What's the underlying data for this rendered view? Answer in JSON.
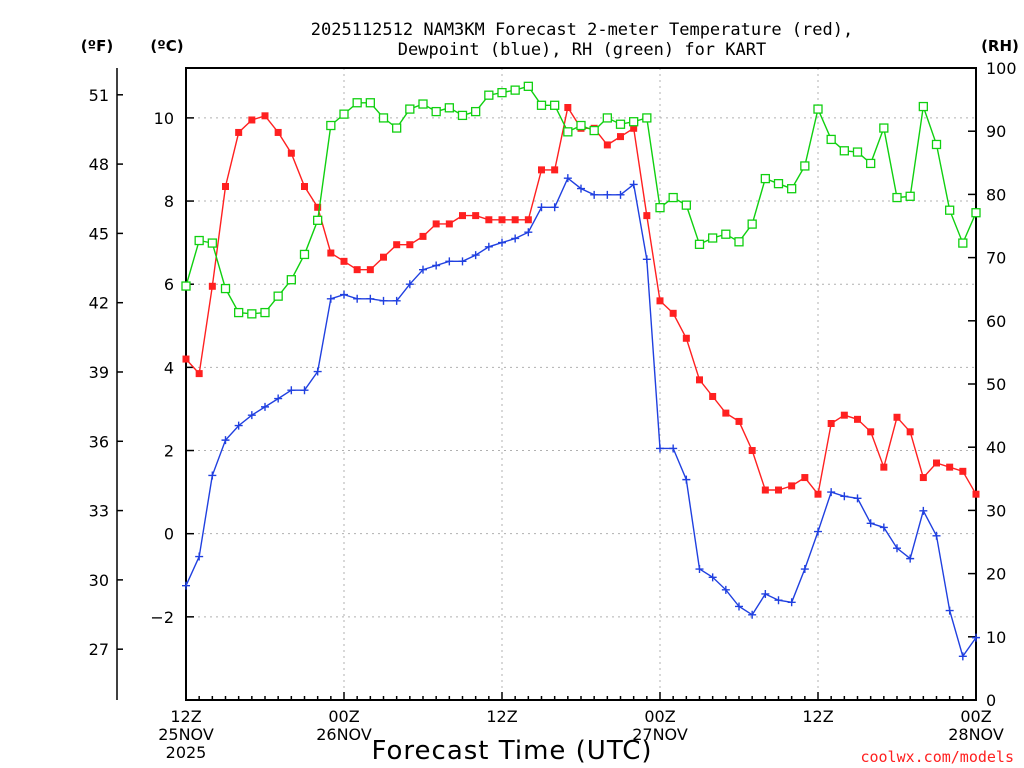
{
  "chart_data": {
    "type": "line",
    "title_line1": "2025112512 NAM3KM Forecast 2-meter Temperature (red),",
    "title_line2": "Dewpoint (blue), RH (green) for KART",
    "xlabel": "Forecast Time (UTC)",
    "credit": "coolwx.com/models",
    "unit_left_f": "(ºF)",
    "unit_left_c": "(ºC)",
    "unit_right": "(RH)",
    "x_range_hours": [
      0,
      60
    ],
    "y_c_range": [
      -4,
      11.2
    ],
    "y_rh_range": [
      0,
      100
    ],
    "y_c_ticks": [
      "−2",
      "0",
      "2",
      "4",
      "6",
      "8",
      "10"
    ],
    "y_f_ticks": [
      "27",
      "30",
      "33",
      "36",
      "39",
      "42",
      "45",
      "48",
      "51"
    ],
    "y_rh_ticks": [
      "0",
      "10",
      "20",
      "30",
      "40",
      "50",
      "60",
      "70",
      "80",
      "90",
      "100"
    ],
    "x_ticks": [
      {
        "h": 0,
        "line1": "12Z",
        "line2": "25NOV",
        "line3": "2025"
      },
      {
        "h": 12,
        "line1": "00Z",
        "line2": "26NOV",
        "line3": ""
      },
      {
        "h": 24,
        "line1": "12Z",
        "line2": "",
        "line3": ""
      },
      {
        "h": 36,
        "line1": "00Z",
        "line2": "27NOV",
        "line3": ""
      },
      {
        "h": 48,
        "line1": "12Z",
        "line2": "",
        "line3": ""
      },
      {
        "h": 60,
        "line1": "00Z",
        "line2": "28NOV",
        "line3": ""
      }
    ],
    "hours": [
      0,
      1,
      2,
      3,
      4,
      5,
      6,
      7,
      8,
      9,
      10,
      11,
      12,
      13,
      14,
      15,
      16,
      17,
      18,
      19,
      20,
      21,
      22,
      23,
      24,
      25,
      26,
      27,
      28,
      29,
      30,
      31,
      32,
      33,
      34,
      35,
      36,
      37,
      38,
      39,
      40,
      41,
      42,
      43,
      44,
      45,
      46,
      47,
      48,
      49,
      50,
      51,
      52,
      53,
      54,
      55,
      56,
      57,
      58,
      59,
      60
    ],
    "series": [
      {
        "name": "Temperature",
        "unit": "C",
        "color": "#ff2020",
        "values": [
          4.2,
          3.85,
          5.95,
          8.35,
          9.65,
          9.95,
          10.05,
          9.65,
          9.15,
          8.35,
          7.85,
          6.75,
          6.55,
          6.35,
          6.35,
          6.65,
          6.95,
          6.95,
          7.15,
          7.45,
          7.45,
          7.65,
          7.65,
          7.55,
          7.55,
          7.55,
          7.55,
          8.75,
          8.75,
          10.25,
          9.75,
          9.75,
          9.35,
          9.55,
          9.75,
          7.65,
          5.6,
          5.3,
          4.7,
          3.7,
          3.3,
          2.9,
          2.7,
          2.0,
          1.05,
          1.05,
          1.15,
          1.35,
          0.95,
          2.65,
          2.85,
          2.75,
          2.45,
          1.6,
          2.8,
          2.45,
          1.35,
          1.7,
          1.6,
          1.5,
          0.95
        ]
      },
      {
        "name": "Dewpoint",
        "unit": "C",
        "color": "#2040e0",
        "values": [
          -1.25,
          -0.55,
          1.4,
          2.25,
          2.6,
          2.85,
          3.05,
          3.25,
          3.45,
          3.45,
          3.9,
          5.65,
          5.75,
          5.65,
          5.65,
          5.6,
          5.6,
          6.0,
          6.35,
          6.45,
          6.55,
          6.55,
          6.7,
          6.9,
          7.0,
          7.1,
          7.25,
          7.85,
          7.85,
          8.55,
          8.3,
          8.15,
          8.15,
          8.15,
          8.4,
          6.6,
          2.05,
          2.05,
          1.3,
          -0.85,
          -1.05,
          -1.35,
          -1.75,
          -1.95,
          -1.45,
          -1.6,
          -1.65,
          -0.85,
          0.05,
          1.0,
          0.9,
          0.85,
          0.25,
          0.15,
          -0.35,
          -0.6,
          0.55,
          -0.05,
          -1.85,
          -2.95,
          -2.5
        ]
      },
      {
        "name": "RH",
        "unit": "%",
        "color": "#10d010",
        "values": [
          65.5,
          72.7,
          72.3,
          65.1,
          61.3,
          61.1,
          61.3,
          63.9,
          66.5,
          70.5,
          75.9,
          90.9,
          92.7,
          94.5,
          94.5,
          92.1,
          90.5,
          93.5,
          94.3,
          93.1,
          93.7,
          92.5,
          93.1,
          95.7,
          96.1,
          96.5,
          97.1,
          94.1,
          94.1,
          89.9,
          90.9,
          90.1,
          92.1,
          91.1,
          91.5,
          92.1,
          77.9,
          79.5,
          78.3,
          72.1,
          73.1,
          73.7,
          72.5,
          75.3,
          82.5,
          81.7,
          80.9,
          84.5,
          93.5,
          88.7,
          86.9,
          86.7,
          84.9,
          90.5,
          79.5,
          79.7,
          93.9,
          87.9,
          77.5,
          72.3,
          77.1
        ]
      }
    ]
  }
}
